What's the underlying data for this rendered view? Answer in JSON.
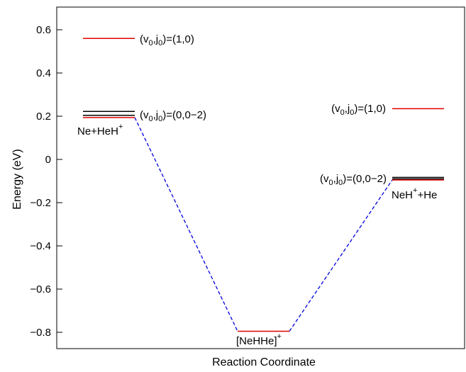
{
  "chart_data": {
    "type": "line",
    "title": "",
    "xlabel": "Reaction Coordinate",
    "ylabel": "Energy (eV)",
    "ylim": [
      -0.9,
      0.7
    ],
    "yticks": [
      {
        "value": 0.6,
        "label": "0.6"
      },
      {
        "value": 0.4,
        "label": "0.4"
      },
      {
        "value": 0.2,
        "label": "0.2"
      },
      {
        "value": 0.0,
        "label": "0"
      },
      {
        "value": -0.2,
        "label": "−0.2"
      },
      {
        "value": -0.4,
        "label": "−0.4"
      },
      {
        "value": -0.6,
        "label": "−0.6"
      },
      {
        "value": -0.8,
        "label": "−0.8"
      }
    ],
    "grid": false,
    "colors": {
      "red": "#e00000",
      "black": "#000000",
      "blue": "#0000dd"
    },
    "levels": [
      {
        "name": "reactant-v1",
        "site": "reactant",
        "y": 0.56,
        "color": "red"
      },
      {
        "name": "reactant-j0",
        "site": "reactant",
        "y": 0.194,
        "color": "red"
      },
      {
        "name": "reactant-j1",
        "site": "reactant",
        "y": 0.204,
        "color": "black"
      },
      {
        "name": "reactant-j2",
        "site": "reactant",
        "y": 0.222,
        "color": "black"
      },
      {
        "name": "complex",
        "site": "complex",
        "y": -0.795,
        "color": "red"
      },
      {
        "name": "product-v1",
        "site": "product",
        "y": 0.235,
        "color": "red"
      },
      {
        "name": "product-j0",
        "site": "product",
        "y": -0.095,
        "color": "red"
      },
      {
        "name": "product-j1",
        "site": "product",
        "y": -0.09,
        "color": "black"
      },
      {
        "name": "product-j2",
        "site": "product",
        "y": -0.083,
        "color": "black"
      }
    ],
    "connectors": [
      {
        "from": "reactant",
        "from_y": 0.194,
        "to": "complex",
        "to_y": -0.795
      },
      {
        "from": "complex",
        "from_y": -0.795,
        "to": "product",
        "to_y": -0.095
      }
    ],
    "labels": {
      "reactant_upper": {
        "pre": "(v",
        "sub1": "0",
        "mid": ",j",
        "sub2": "0",
        "post": ")=(1,0)"
      },
      "reactant_lower": {
        "pre": "(v",
        "sub1": "0",
        "mid": ",j",
        "sub2": "0",
        "post": ")=(0,0−2)"
      },
      "reactant_species": {
        "base": "Ne+HeH",
        "sup": "+",
        "rest": ""
      },
      "complex_species": {
        "base": "[NeHHe]",
        "sup": "+",
        "rest": ""
      },
      "product_upper": {
        "pre": "(v",
        "sub1": "0",
        "mid": ",j",
        "sub2": "0",
        "post": ")=(1,0)"
      },
      "product_lower": {
        "pre": "(v",
        "sub1": "0",
        "mid": ",j",
        "sub2": "0",
        "post": ")=(0,0−2)"
      },
      "product_species": {
        "base": "NeH",
        "sup": "+",
        "rest": "+He"
      }
    }
  }
}
